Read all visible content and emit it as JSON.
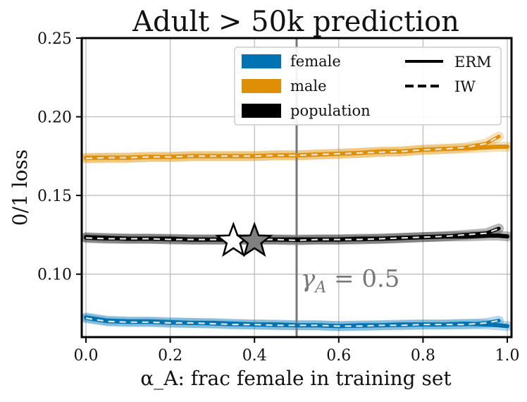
{
  "chart_data": {
    "type": "line",
    "title": "Adult > 50k prediction",
    "xlabel": "α_A: frac female in training set",
    "ylabel": "0/1 loss",
    "xlim": [
      -0.01,
      1.01
    ],
    "ylim": [
      0.06,
      0.25
    ],
    "xticks": [
      0.0,
      0.2,
      0.4,
      0.6,
      0.8,
      1.0
    ],
    "xtick_labels": [
      "0.0",
      "0.2",
      "0.4",
      "0.6",
      "0.8",
      "1.0"
    ],
    "yticks": [
      0.1,
      0.15,
      0.2,
      0.25
    ],
    "ytick_labels": [
      "0.10",
      "0.15",
      "0.20",
      "0.25"
    ],
    "grid": true,
    "legend": {
      "position": "top-right",
      "groups": [
        {
          "label": "female",
          "color": "#0173b2"
        },
        {
          "label": "male",
          "color": "#de8f05"
        },
        {
          "label": "population",
          "color": "#000000"
        }
      ],
      "styles": [
        {
          "label": "ERM",
          "dash": "solid"
        },
        {
          "label": "IW",
          "dash": "dashed"
        }
      ]
    },
    "vline": {
      "x": 0.5,
      "label_prefix": "γ",
      "label_sub": "A",
      "label_suffix": " = 0.5",
      "color": "#777777"
    },
    "markers": [
      {
        "name": "open-star",
        "x": 0.35,
        "y": 0.121,
        "fill": "#ffffff"
      },
      {
        "name": "filled-star",
        "x": 0.4,
        "y": 0.121,
        "fill": "#808080"
      }
    ],
    "x": [
      0.0,
      0.05,
      0.1,
      0.15,
      0.2,
      0.25,
      0.3,
      0.35,
      0.4,
      0.45,
      0.5,
      0.55,
      0.6,
      0.65,
      0.7,
      0.75,
      0.8,
      0.85,
      0.9,
      0.95,
      0.98,
      1.0
    ],
    "series": [
      {
        "name": "female ERM",
        "group": "female",
        "style": "ERM",
        "color": "#0173b2",
        "values": [
          0.0725,
          0.0705,
          0.07,
          0.07,
          0.0695,
          0.069,
          0.069,
          0.0685,
          0.068,
          0.068,
          0.0675,
          0.0675,
          0.067,
          0.0675,
          0.0675,
          0.068,
          0.068,
          0.068,
          0.0685,
          0.068,
          0.0675,
          0.067
        ]
      },
      {
        "name": "female IW",
        "group": "female",
        "style": "IW",
        "color": "#0173b2",
        "values": [
          0.072,
          0.07,
          0.0695,
          0.0695,
          0.069,
          0.069,
          0.0685,
          0.068,
          0.068,
          0.0675,
          0.0675,
          0.0675,
          0.067,
          0.067,
          0.0675,
          0.0675,
          0.068,
          0.068,
          0.068,
          0.069,
          0.0705,
          null
        ]
      },
      {
        "name": "male ERM",
        "group": "male",
        "style": "ERM",
        "color": "#de8f05",
        "values": [
          0.174,
          0.174,
          0.174,
          0.1745,
          0.1745,
          0.175,
          0.175,
          0.175,
          0.175,
          0.1755,
          0.1755,
          0.176,
          0.1765,
          0.177,
          0.178,
          0.178,
          0.179,
          0.1795,
          0.18,
          0.1805,
          0.181,
          0.181
        ]
      },
      {
        "name": "male IW",
        "group": "male",
        "style": "IW",
        "color": "#de8f05",
        "values": [
          0.1735,
          0.174,
          0.174,
          0.1745,
          0.1745,
          0.175,
          0.175,
          0.175,
          0.175,
          0.1755,
          0.1755,
          0.176,
          0.1765,
          0.177,
          0.1775,
          0.178,
          0.179,
          0.1795,
          0.1805,
          0.183,
          0.1875,
          null
        ]
      },
      {
        "name": "population ERM",
        "group": "population",
        "style": "ERM",
        "color": "#000000",
        "values": [
          0.1235,
          0.123,
          0.1225,
          0.1225,
          0.1225,
          0.122,
          0.122,
          0.122,
          0.122,
          0.122,
          0.122,
          0.122,
          0.122,
          0.1225,
          0.1225,
          0.123,
          0.1235,
          0.124,
          0.124,
          0.1245,
          0.1245,
          0.124
        ]
      },
      {
        "name": "population IW",
        "group": "population",
        "style": "IW",
        "color": "#000000",
        "values": [
          0.123,
          0.1225,
          0.1225,
          0.1225,
          0.122,
          0.122,
          0.122,
          0.122,
          0.122,
          0.122,
          0.1215,
          0.122,
          0.122,
          0.122,
          0.1225,
          0.123,
          0.1235,
          0.124,
          0.125,
          0.126,
          0.129,
          null
        ]
      }
    ]
  }
}
